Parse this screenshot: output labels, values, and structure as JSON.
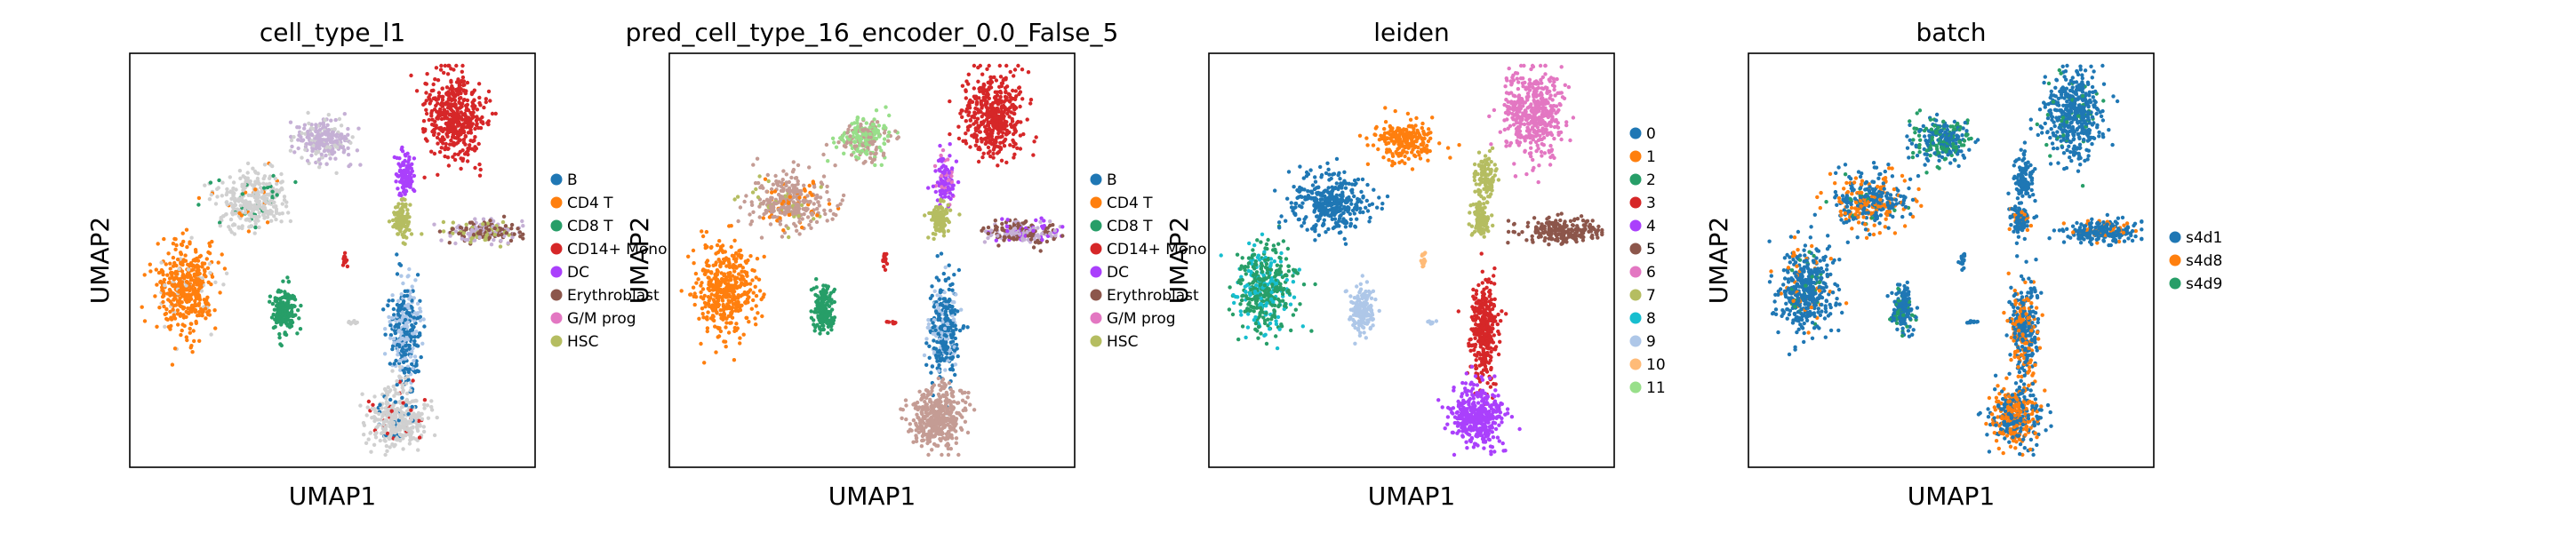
{
  "figure": {
    "type": "umap-panels"
  },
  "chart_data": [
    {
      "type": "scatter",
      "title": "cell_type_l1",
      "xlabel": "UMAP1",
      "ylabel": "UMAP2",
      "legend_position": "right",
      "grid": false,
      "series": [
        {
          "name": "B",
          "color": "#1f77b4"
        },
        {
          "name": "CD4 T",
          "color": "#ff7f0e"
        },
        {
          "name": "CD8 T",
          "color": "#279e68"
        },
        {
          "name": "CD14+ Mono",
          "color": "#d62728"
        },
        {
          "name": "DC",
          "color": "#aa40fc"
        },
        {
          "name": "Erythroblast",
          "color": "#8c564b"
        },
        {
          "name": "G/M prog",
          "color": "#e377c2"
        },
        {
          "name": "HSC",
          "color": "#b5bd61"
        }
      ],
      "other_colors": [
        "#d0d0d0",
        "#aec7e8",
        "#98df8a",
        "#c5b0d5"
      ]
    },
    {
      "type": "scatter",
      "title": "pred_cell_type_16_encoder_0.0_False_5",
      "xlabel": "UMAP1",
      "ylabel": "UMAP2",
      "legend_position": "right",
      "grid": false,
      "series": [
        {
          "name": "B",
          "color": "#1f77b4"
        },
        {
          "name": "CD4 T",
          "color": "#ff7f0e"
        },
        {
          "name": "CD8 T",
          "color": "#279e68"
        },
        {
          "name": "CD14+ Mono",
          "color": "#d62728"
        },
        {
          "name": "DC",
          "color": "#aa40fc"
        },
        {
          "name": "Erythroblast",
          "color": "#8c564b"
        },
        {
          "name": "G/M prog",
          "color": "#e377c2"
        },
        {
          "name": "HSC",
          "color": "#b5bd61"
        }
      ],
      "other_colors": [
        "#c49c94",
        "#aec7e8",
        "#98df8a",
        "#c5b0d5"
      ]
    },
    {
      "type": "scatter",
      "title": "leiden",
      "xlabel": "UMAP1",
      "ylabel": "UMAP2",
      "legend_position": "right",
      "grid": false,
      "series": [
        {
          "name": "0",
          "color": "#1f77b4"
        },
        {
          "name": "1",
          "color": "#ff7f0e"
        },
        {
          "name": "2",
          "color": "#279e68"
        },
        {
          "name": "3",
          "color": "#d62728"
        },
        {
          "name": "4",
          "color": "#aa40fc"
        },
        {
          "name": "5",
          "color": "#8c564b"
        },
        {
          "name": "6",
          "color": "#e377c2"
        },
        {
          "name": "7",
          "color": "#b5bd61"
        },
        {
          "name": "8",
          "color": "#17becf"
        },
        {
          "name": "9",
          "color": "#aec7e8"
        },
        {
          "name": "10",
          "color": "#ffbb78"
        },
        {
          "name": "11",
          "color": "#98df8a"
        }
      ]
    },
    {
      "type": "scatter",
      "title": "batch",
      "xlabel": "UMAP1",
      "ylabel": "UMAP2",
      "legend_position": "right",
      "grid": false,
      "series": [
        {
          "name": "s4d1",
          "color": "#1f77b4"
        },
        {
          "name": "s4d8",
          "color": "#ff7f0e"
        },
        {
          "name": "s4d9",
          "color": "#279e68"
        }
      ]
    }
  ]
}
